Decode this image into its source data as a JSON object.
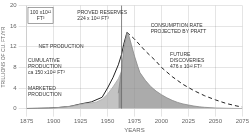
{
  "chart_data": {
    "type": "line",
    "xlabel": "YEARS",
    "ylabel": "TRILLIONS OF CU. FT./YR",
    "xlim": [
      1875,
      2075
    ],
    "ylim": [
      0,
      20
    ],
    "xticks": [
      1875,
      1900,
      1925,
      1950,
      1975,
      2000,
      2025,
      2050,
      2075
    ],
    "yticks": [
      0,
      4,
      8,
      12,
      16,
      20
    ],
    "grid": true,
    "series": [
      {
        "type": "area",
        "color": "#888888",
        "x": [
          1960,
          1963,
          1965,
          1968,
          1970,
          1972,
          1975,
          1978,
          1980,
          1985,
          1990,
          1995,
          2000,
          2005,
          2010,
          2015,
          2020,
          2025,
          2030,
          2035,
          2040,
          2050,
          2060,
          2070,
          2075
        ],
        "values": [
          3.0,
          7.5,
          11.5,
          14.8,
          14.0,
          12.5,
          10.2,
          8.2,
          7.0,
          5.5,
          4.3,
          3.4,
          2.7,
          2.1,
          1.6,
          1.2,
          0.9,
          0.7,
          0.5,
          0.35,
          0.25,
          0.12,
          0.06,
          0.02,
          0.01
        ]
      },
      {
        "type": "area",
        "color": "#aaaaaa",
        "x": [
          1875,
          1880,
          1885,
          1890,
          1895,
          1900,
          1905,
          1910,
          1915,
          1920,
          1925,
          1930,
          1935,
          1940,
          1945,
          1950,
          1955,
          1960,
          1963
        ],
        "values": [
          0.02,
          0.03,
          0.05,
          0.07,
          0.1,
          0.15,
          0.22,
          0.32,
          0.45,
          0.6,
          0.85,
          1.0,
          1.1,
          1.3,
          1.8,
          2.8,
          4.2,
          5.8,
          7.2
        ]
      },
      {
        "type": "line",
        "color": "#222222",
        "x": [
          1875,
          1885,
          1895,
          1905,
          1915,
          1925,
          1935,
          1945,
          1950,
          1955,
          1960,
          1963,
          1965,
          1968
        ],
        "values": [
          0.02,
          0.05,
          0.1,
          0.22,
          0.42,
          0.9,
          1.3,
          2.2,
          4.0,
          6.0,
          8.5,
          10.5,
          12.5,
          14.8
        ]
      },
      {
        "type": "line",
        "color": "#222222",
        "line_style": "dashed",
        "x": [
          1968,
          1975,
          1985,
          1995,
          2000,
          2010,
          2020,
          2030,
          2040,
          2050,
          2060,
          2070,
          2075
        ],
        "values": [
          14.8,
          13.5,
          11.2,
          9.2,
          8.0,
          6.2,
          4.7,
          3.5,
          2.5,
          1.7,
          1.0,
          0.5,
          0.3
        ]
      }
    ],
    "vlines": [
      1963
    ],
    "annotations": [
      "100 x10¹²\nFT³",
      "PROVED RESERVES\n224 x 10¹² FT³",
      "NET PRODUCTION",
      "CUMULATIVE\nPRODUCTION\nca 150 x10¹² FT³",
      "MARKETED\nPRODUCTION",
      "CONSUMPTION RATE\nPROJECTED BY PRATT",
      "FUTURE\nDISCOVERIES\n476 x 10¹² FT³"
    ]
  }
}
